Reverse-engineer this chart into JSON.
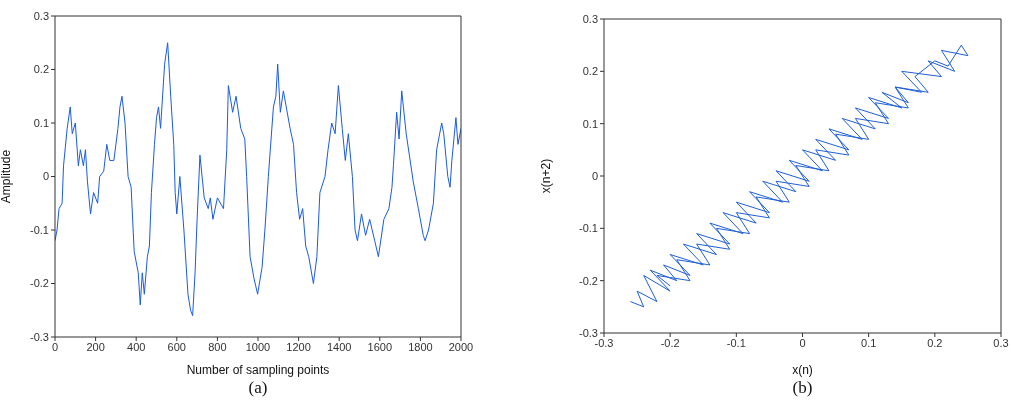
{
  "chart_data": [
    {
      "type": "line",
      "xlabel": "Number of sampling points",
      "ylabel": "Amplitude",
      "annotations": [
        "(a)"
      ],
      "xlim": [
        0,
        2000
      ],
      "xticks": [
        0,
        200,
        400,
        600,
        800,
        1000,
        1200,
        1400,
        1600,
        1800,
        2000
      ],
      "ylim": [
        -0.3,
        0.3
      ],
      "yticks": [
        -0.3,
        -0.2,
        -0.1,
        0,
        0.1,
        0.2,
        0.3
      ],
      "grid": false,
      "x": [
        0,
        10,
        20,
        35,
        42,
        60,
        75,
        85,
        100,
        115,
        125,
        140,
        150,
        160,
        175,
        190,
        210,
        220,
        240,
        255,
        270,
        290,
        310,
        320,
        330,
        345,
        360,
        375,
        390,
        410,
        420,
        430,
        440,
        455,
        465,
        475,
        490,
        500,
        510,
        520,
        540,
        555,
        570,
        585,
        592,
        600,
        615,
        635,
        655,
        668,
        678,
        690,
        700,
        714,
        735,
        755,
        765,
        778,
        800,
        830,
        846,
        854,
        875,
        892,
        915,
        935,
        944,
        961,
        980,
        998,
        1020,
        1034,
        1051,
        1076,
        1088,
        1097,
        1110,
        1125,
        1158,
        1175,
        1190,
        1205,
        1220,
        1235,
        1250,
        1273,
        1290,
        1305,
        1330,
        1345,
        1363,
        1380,
        1396,
        1415,
        1430,
        1445,
        1465,
        1478,
        1490,
        1510,
        1530,
        1550,
        1575,
        1593,
        1620,
        1645,
        1660,
        1667,
        1683,
        1695,
        1708,
        1730,
        1765,
        1790,
        1814,
        1823,
        1840,
        1864,
        1880,
        1905,
        1915,
        1935,
        1946,
        1955,
        1975,
        1985,
        2000
      ],
      "series": [
        {
          "color": "#1a5ae6",
          "values": [
            -0.12,
            -0.1,
            -0.06,
            -0.05,
            0.02,
            0.09,
            0.13,
            0.08,
            0.1,
            0.02,
            0.05,
            0.02,
            0.05,
            -0.01,
            -0.07,
            -0.03,
            -0.05,
            0.0,
            0.01,
            0.06,
            0.03,
            0.03,
            0.09,
            0.13,
            0.15,
            0.1,
            0.0,
            -0.02,
            -0.14,
            -0.18,
            -0.24,
            -0.18,
            -0.22,
            -0.15,
            -0.13,
            -0.03,
            0.06,
            0.11,
            0.13,
            0.09,
            0.21,
            0.25,
            0.15,
            0.06,
            -0.03,
            -0.07,
            0.0,
            -0.1,
            -0.22,
            -0.25,
            -0.26,
            -0.18,
            -0.08,
            0.04,
            -0.04,
            -0.06,
            -0.04,
            -0.08,
            -0.04,
            -0.06,
            0.05,
            0.17,
            0.12,
            0.15,
            0.09,
            0.07,
            0.0,
            -0.15,
            -0.19,
            -0.22,
            -0.17,
            -0.1,
            0.0,
            0.13,
            0.15,
            0.21,
            0.12,
            0.16,
            0.09,
            0.06,
            -0.03,
            -0.08,
            -0.06,
            -0.13,
            -0.15,
            -0.2,
            -0.15,
            -0.03,
            0.0,
            0.05,
            0.1,
            0.08,
            0.17,
            0.09,
            0.03,
            0.08,
            0.0,
            -0.1,
            -0.12,
            -0.07,
            -0.11,
            -0.08,
            -0.12,
            -0.15,
            -0.08,
            -0.06,
            -0.02,
            0.02,
            0.12,
            0.07,
            0.16,
            0.08,
            -0.01,
            -0.06,
            -0.11,
            -0.12,
            -0.1,
            -0.05,
            0.05,
            0.1,
            0.08,
            0.0,
            -0.02,
            0.03,
            0.11,
            0.06,
            0.09
          ]
        }
      ]
    },
    {
      "type": "line",
      "xlabel": "x(n)",
      "ylabel": "x(n+2)",
      "annotations": [
        "(b)"
      ],
      "xlim": [
        -0.3,
        0.3
      ],
      "xticks": [
        -0.3,
        -0.2,
        -0.1,
        0,
        0.1,
        0.2,
        0.3
      ],
      "ylim": [
        -0.3,
        0.3
      ],
      "yticks": [
        -0.3,
        -0.2,
        -0.1,
        0,
        0.1,
        0.2,
        0.3
      ],
      "grid": false,
      "x": [
        -0.26,
        -0.24,
        -0.25,
        -0.22,
        -0.24,
        -0.2,
        -0.23,
        -0.19,
        -0.21,
        -0.17,
        -0.2,
        -0.15,
        -0.18,
        -0.13,
        -0.16,
        -0.11,
        -0.14,
        -0.09,
        -0.12,
        -0.07,
        -0.1,
        -0.05,
        -0.08,
        -0.03,
        -0.06,
        -0.01,
        -0.04,
        0.01,
        -0.02,
        0.03,
        0.0,
        0.05,
        0.02,
        0.07,
        0.04,
        0.09,
        0.06,
        0.11,
        0.08,
        0.13,
        0.1,
        0.15,
        0.12,
        0.16,
        0.14,
        0.18,
        0.15,
        0.21,
        0.19,
        0.23,
        0.21,
        0.25,
        0.24,
        0.22,
        0.2,
        0.17,
        0.19,
        0.14,
        0.16,
        0.11,
        0.13,
        0.08,
        0.1,
        0.05,
        0.07,
        0.02,
        0.04,
        -0.01,
        0.01,
        -0.04,
        -0.02,
        -0.07,
        -0.05,
        -0.1,
        -0.08,
        -0.13,
        -0.11,
        -0.16,
        -0.14,
        -0.19,
        -0.17,
        -0.22,
        -0.2
      ],
      "series": [
        {
          "color": "#1f5fd6",
          "values": [
            -0.24,
            -0.25,
            -0.22,
            -0.24,
            -0.19,
            -0.22,
            -0.18,
            -0.2,
            -0.17,
            -0.19,
            -0.15,
            -0.17,
            -0.13,
            -0.15,
            -0.11,
            -0.13,
            -0.09,
            -0.11,
            -0.07,
            -0.09,
            -0.05,
            -0.07,
            -0.03,
            -0.05,
            -0.01,
            -0.03,
            0.01,
            -0.01,
            0.03,
            0.01,
            0.05,
            0.03,
            0.07,
            0.05,
            0.09,
            0.07,
            0.11,
            0.09,
            0.13,
            0.11,
            0.15,
            0.13,
            0.16,
            0.14,
            0.17,
            0.16,
            0.2,
            0.19,
            0.22,
            0.2,
            0.24,
            0.23,
            0.25,
            0.21,
            0.22,
            0.19,
            0.16,
            0.17,
            0.13,
            0.14,
            0.1,
            0.11,
            0.07,
            0.08,
            0.04,
            0.05,
            0.01,
            0.02,
            -0.02,
            -0.01,
            -0.05,
            -0.04,
            -0.08,
            -0.07,
            -0.11,
            -0.1,
            -0.14,
            -0.13,
            -0.17,
            -0.16,
            -0.2,
            -0.19,
            -0.21
          ]
        }
      ]
    }
  ]
}
